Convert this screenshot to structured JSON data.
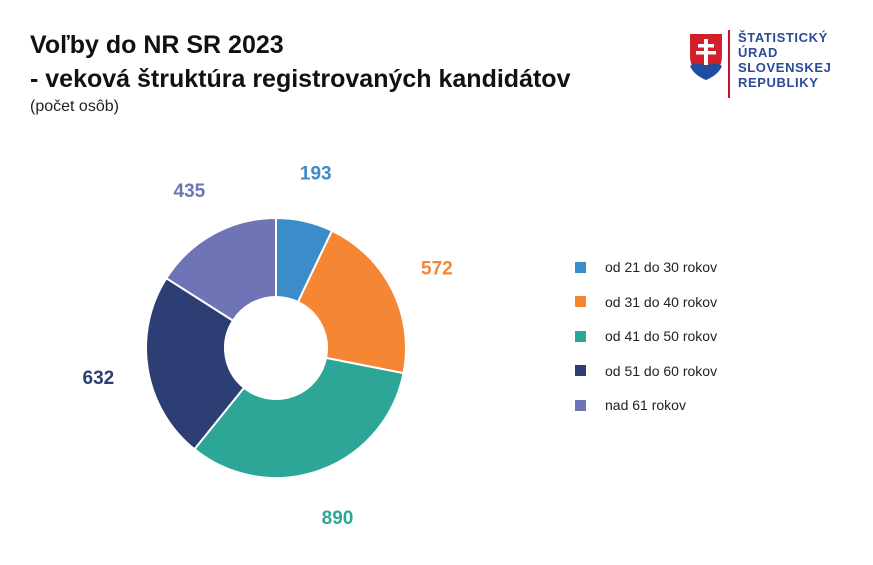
{
  "header": {
    "title_line1": "Voľby do NR SR 2023",
    "title_line2": "- veková štruktúra registrovaných kandidátov",
    "subtitle": "(počet osôb)"
  },
  "logo": {
    "lines": [
      "ŠTATISTICKÝ",
      "ÚRAD",
      "SLOVENSKEJ",
      "REPUBLIKY"
    ]
  },
  "chart_data": {
    "type": "donut",
    "categories": [
      "od 21 do 30 rokov",
      "od 31 do 40 rokov",
      "od 41 do 50 rokov",
      "od 51 do 60 rokov",
      "nad 61 rokov"
    ],
    "values": [
      193,
      572,
      890,
      632,
      435
    ],
    "colors": [
      "#3a8dc8",
      "#f58634",
      "#2da698",
      "#2c3e73",
      "#6e74b5"
    ],
    "legend_position": "right",
    "start_angle_deg": 0,
    "direction": "clockwise"
  }
}
